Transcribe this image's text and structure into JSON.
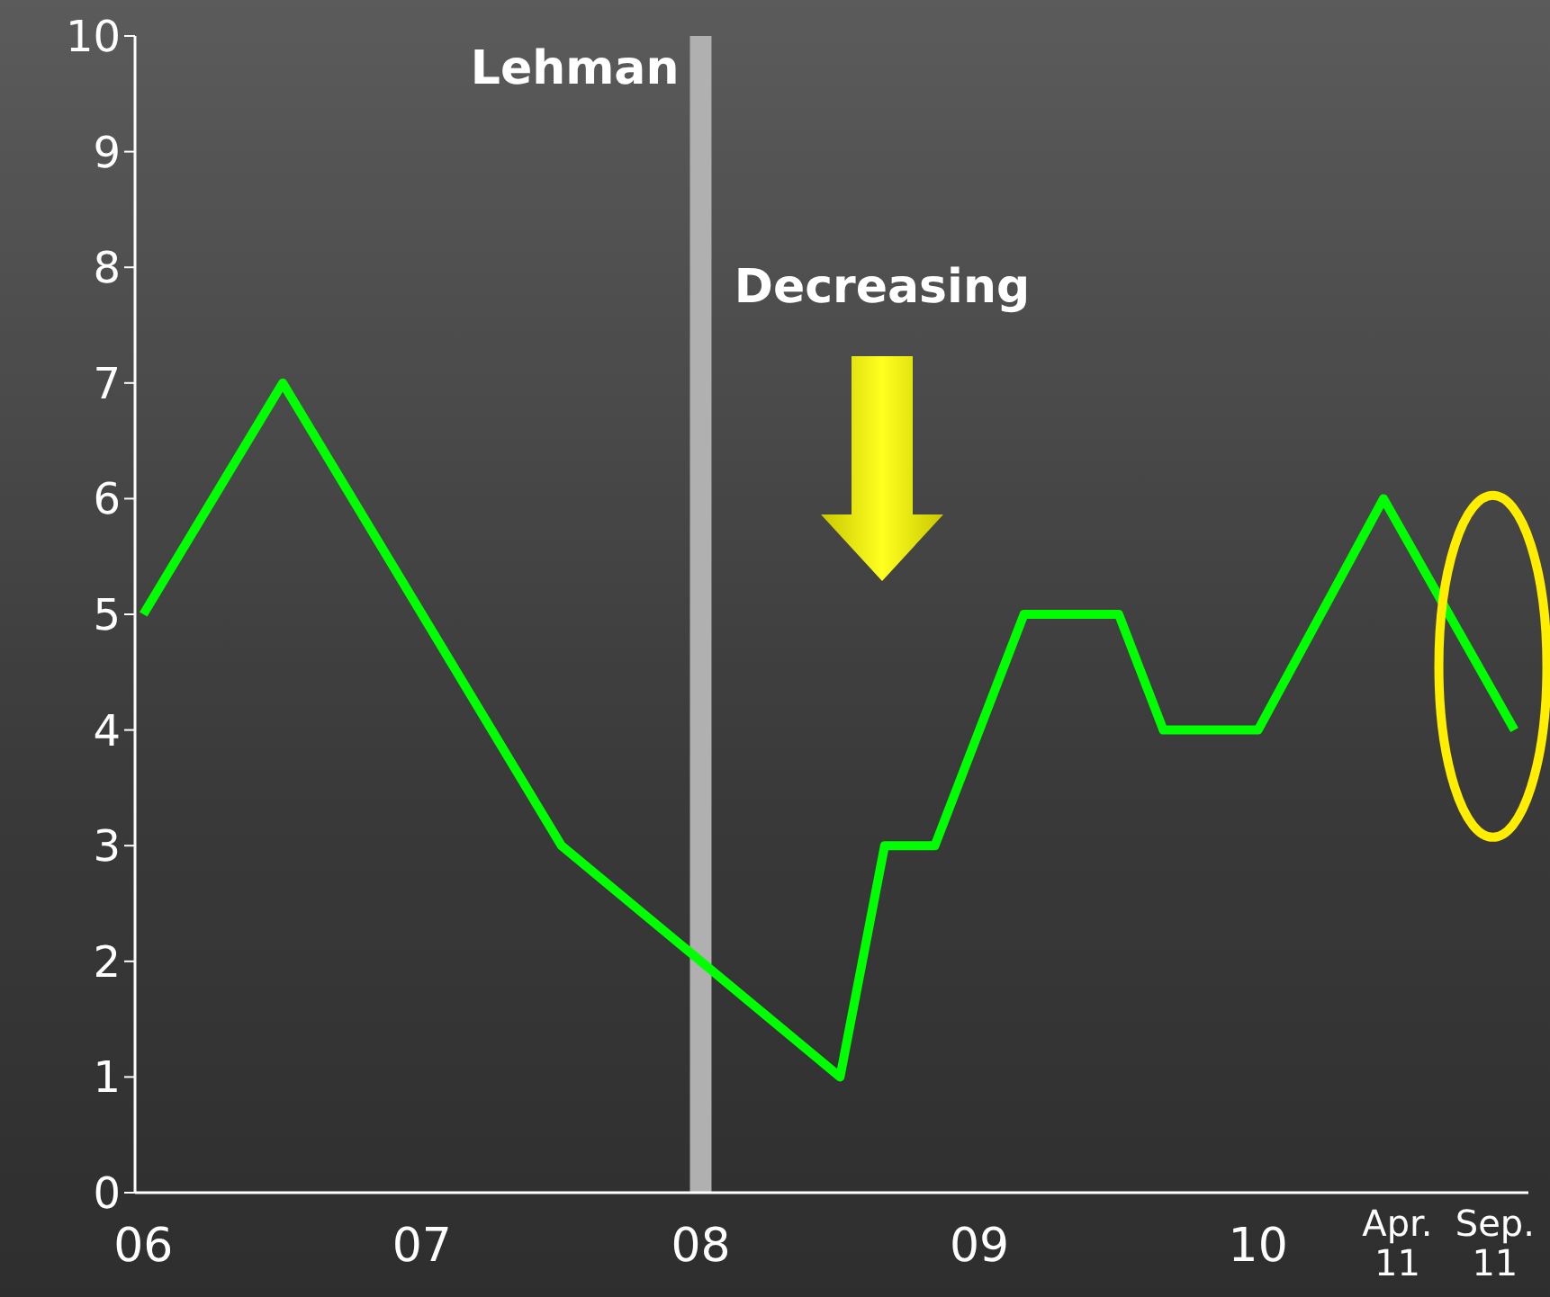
{
  "chart_data": {
    "type": "line",
    "x": [
      2006,
      2006.5,
      2007.5,
      2008.5,
      2008.66,
      2008.84,
      2009.16,
      2009.5,
      2009.66,
      2010,
      2010.45,
      2010.92
    ],
    "series": [
      {
        "color": "#00ff00",
        "values": [
          5,
          7,
          3,
          1,
          3,
          3,
          5,
          5,
          4,
          4,
          6,
          4
        ]
      }
    ],
    "xlim": [
      2005.97,
      2010.97
    ],
    "xticks": [
      {
        "value": 2006,
        "label": "06"
      },
      {
        "value": 2007,
        "label": "07"
      },
      {
        "value": 2008,
        "label": "08"
      },
      {
        "value": 2009,
        "label": "09"
      },
      {
        "value": 2010,
        "label": "10"
      },
      {
        "value": 2010.5,
        "label": "Apr. 11"
      },
      {
        "value": 2010.85,
        "label": "Sep. 11"
      }
    ],
    "ylim": [
      0,
      10
    ],
    "yticks": [
      0,
      1,
      2,
      3,
      4,
      5,
      6,
      7,
      8,
      9,
      10
    ],
    "ref_lines": [
      {
        "axis": "x",
        "value": 2008,
        "label": "Lehman",
        "color": "#b0b0b0"
      }
    ],
    "annotations": [
      "Decreasing"
    ],
    "marker": "none",
    "line_style": "solid"
  }
}
